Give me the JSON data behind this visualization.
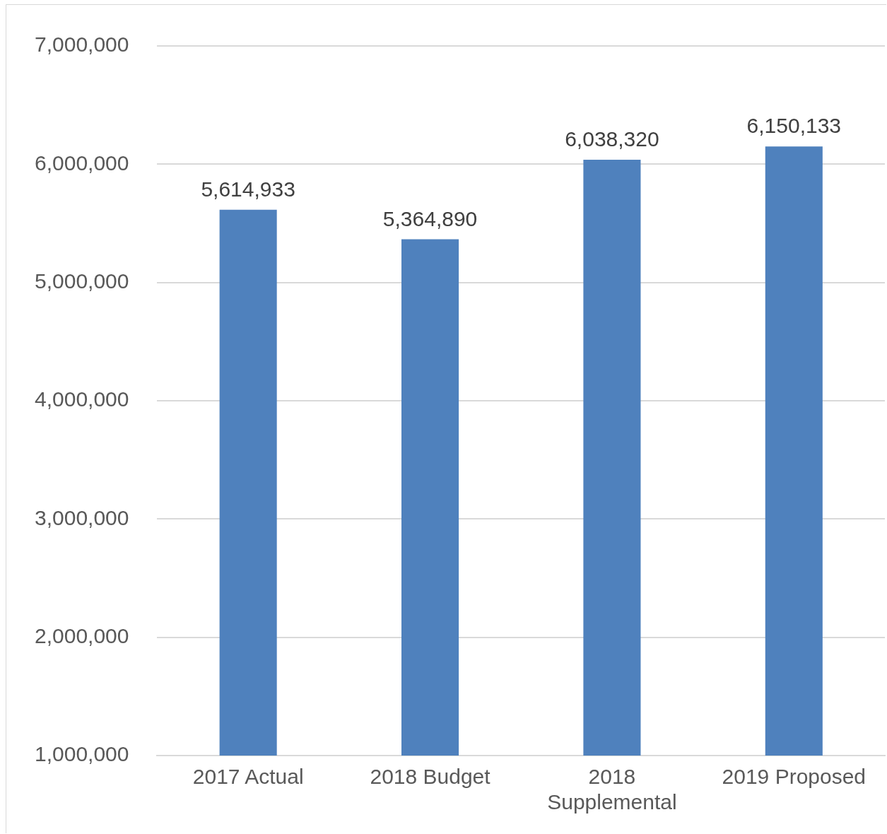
{
  "chart_data": {
    "type": "bar",
    "categories": [
      "2017 Actual",
      "2018 Budget",
      "2018 Supplemental",
      "2019 Proposed"
    ],
    "values": [
      5614933,
      5364890,
      6038320,
      6150133
    ],
    "color": "#4f81bd",
    "ylim": [
      1000000,
      7000000
    ],
    "yticks": [
      {
        "value": 1000000,
        "label": "1,000,000"
      },
      {
        "value": 2000000,
        "label": "2,000,000"
      },
      {
        "value": 3000000,
        "label": "3,000,000"
      },
      {
        "value": 4000000,
        "label": "4,000,000"
      },
      {
        "value": 5000000,
        "label": "5,000,000"
      },
      {
        "value": 6000000,
        "label": "6,000,000"
      },
      {
        "value": 7000000,
        "label": "7,000,000"
      }
    ],
    "value_labels": [
      "5,614,933",
      "5,364,890",
      "6,038,320",
      "6,150,133"
    ],
    "grid": "y",
    "legend": false
  }
}
